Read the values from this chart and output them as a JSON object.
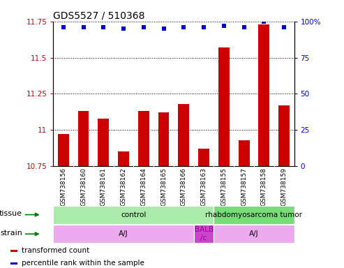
{
  "title": "GDS5527 / 510368",
  "samples": [
    "GSM738156",
    "GSM738160",
    "GSM738161",
    "GSM738162",
    "GSM738164",
    "GSM738165",
    "GSM738166",
    "GSM738163",
    "GSM738155",
    "GSM738157",
    "GSM738158",
    "GSM738159"
  ],
  "bar_values": [
    10.97,
    11.13,
    11.08,
    10.85,
    11.13,
    11.12,
    11.18,
    10.87,
    11.57,
    10.93,
    11.73,
    11.17
  ],
  "dot_values": [
    96,
    96,
    96,
    95,
    96,
    95,
    96,
    96,
    97,
    96,
    100,
    96
  ],
  "bar_color": "#cc0000",
  "dot_color": "#0000cc",
  "ylim_left": [
    10.75,
    11.75
  ],
  "ylim_right": [
    0,
    100
  ],
  "yticks_left": [
    10.75,
    11.0,
    11.25,
    11.5,
    11.75
  ],
  "yticks_right": [
    0,
    25,
    50,
    75,
    100
  ],
  "ytick_labels_left": [
    "10.75",
    "11",
    "11.25",
    "11.5",
    "11.75"
  ],
  "ytick_labels_right": [
    "0",
    "25",
    "50",
    "75",
    "100%"
  ],
  "tissue_groups": [
    {
      "label": "control",
      "start": 0,
      "end": 8,
      "color": "#aaeaaa"
    },
    {
      "label": "rhabdomyosarcoma tumor",
      "start": 8,
      "end": 12,
      "color": "#77dd77"
    }
  ],
  "strain_groups": [
    {
      "label": "A/J",
      "start": 0,
      "end": 7,
      "color": "#eeaaee"
    },
    {
      "label": "BALB\n/c",
      "start": 7,
      "end": 8,
      "color": "#cc44cc"
    },
    {
      "label": "A/J",
      "start": 8,
      "end": 12,
      "color": "#eeaaee"
    }
  ],
  "legend_items": [
    {
      "color": "#cc0000",
      "label": "transformed count"
    },
    {
      "color": "#0000cc",
      "label": "percentile rank within the sample"
    }
  ],
  "bar_bottom": 10.75,
  "sample_bg": "#c8c8c8",
  "title_fontsize": 10,
  "tick_fontsize": 7.5,
  "sample_fontsize": 6.5,
  "row_fontsize": 7.5
}
